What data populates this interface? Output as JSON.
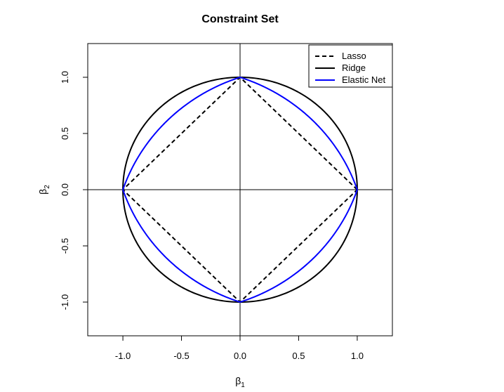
{
  "chart_data": {
    "type": "line",
    "title": "Constraint Set",
    "xlabel": "β",
    "xlabel_sub": "1",
    "ylabel": "β",
    "ylabel_sub": "2",
    "xlim": [
      -1.3,
      1.3
    ],
    "ylim": [
      -1.3,
      1.3
    ],
    "xticks": [
      -1.0,
      -0.5,
      0.0,
      0.5,
      1.0
    ],
    "yticks": [
      -1.0,
      -0.5,
      0.0,
      0.5,
      1.0
    ],
    "xtick_labels": [
      "-1.0",
      "-0.5",
      "0.0",
      "0.5",
      "1.0"
    ],
    "ytick_labels": [
      "-1.0",
      "-0.5",
      "0.0",
      "0.5",
      "1.0"
    ],
    "reference_lines": {
      "x": 0,
      "y": 0
    },
    "grid": false,
    "legend_position": "top-right",
    "series": [
      {
        "name": "Lasso",
        "color": "#000000",
        "style": "dashed",
        "equation": "|β1| + |β2| = 1",
        "x": [
          1,
          0,
          -1,
          0,
          1
        ],
        "y": [
          0,
          1,
          0,
          -1,
          0
        ]
      },
      {
        "name": "Ridge",
        "color": "#000000",
        "style": "solid",
        "equation": "β1² + β2² = 1",
        "x": [
          1,
          0,
          -1,
          0,
          1
        ],
        "y": [
          0,
          1,
          0,
          -1,
          0
        ]
      },
      {
        "name": "Elastic Net",
        "color": "#0000ff",
        "style": "solid",
        "equation": "0.5(|β1| + |β2|) + 0.5(β1² + β2²) = 1",
        "x": [
          1,
          0,
          -1,
          0,
          1
        ],
        "y": [
          0,
          1,
          0,
          -1,
          0
        ]
      }
    ]
  }
}
